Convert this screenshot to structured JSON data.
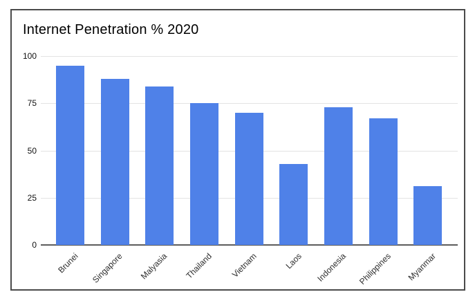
{
  "chart_data": {
    "type": "bar",
    "title": "Internet Penetration % 2020",
    "categories": [
      "Brunei",
      "Singapore",
      "Malyasia",
      "Thailand",
      "Vietnam",
      "Laos",
      "Indonesia",
      "Philippines",
      "Myanmar"
    ],
    "values": [
      95,
      88,
      84,
      75,
      70,
      43,
      73,
      67,
      31
    ],
    "xlabel": "",
    "ylabel": "",
    "ylim": [
      0,
      100
    ],
    "yticks": [
      0,
      25,
      50,
      75,
      100
    ],
    "grid": true,
    "legend_position": "none",
    "colors": {
      "bar": "#4f81e8",
      "gridline": "#e3e3e3",
      "axis": "#5c5c5c",
      "tick_text": "#111111",
      "category_text": "#2e2e2e",
      "frame_border": "#4a4a4a",
      "background": "#ffffff"
    }
  }
}
